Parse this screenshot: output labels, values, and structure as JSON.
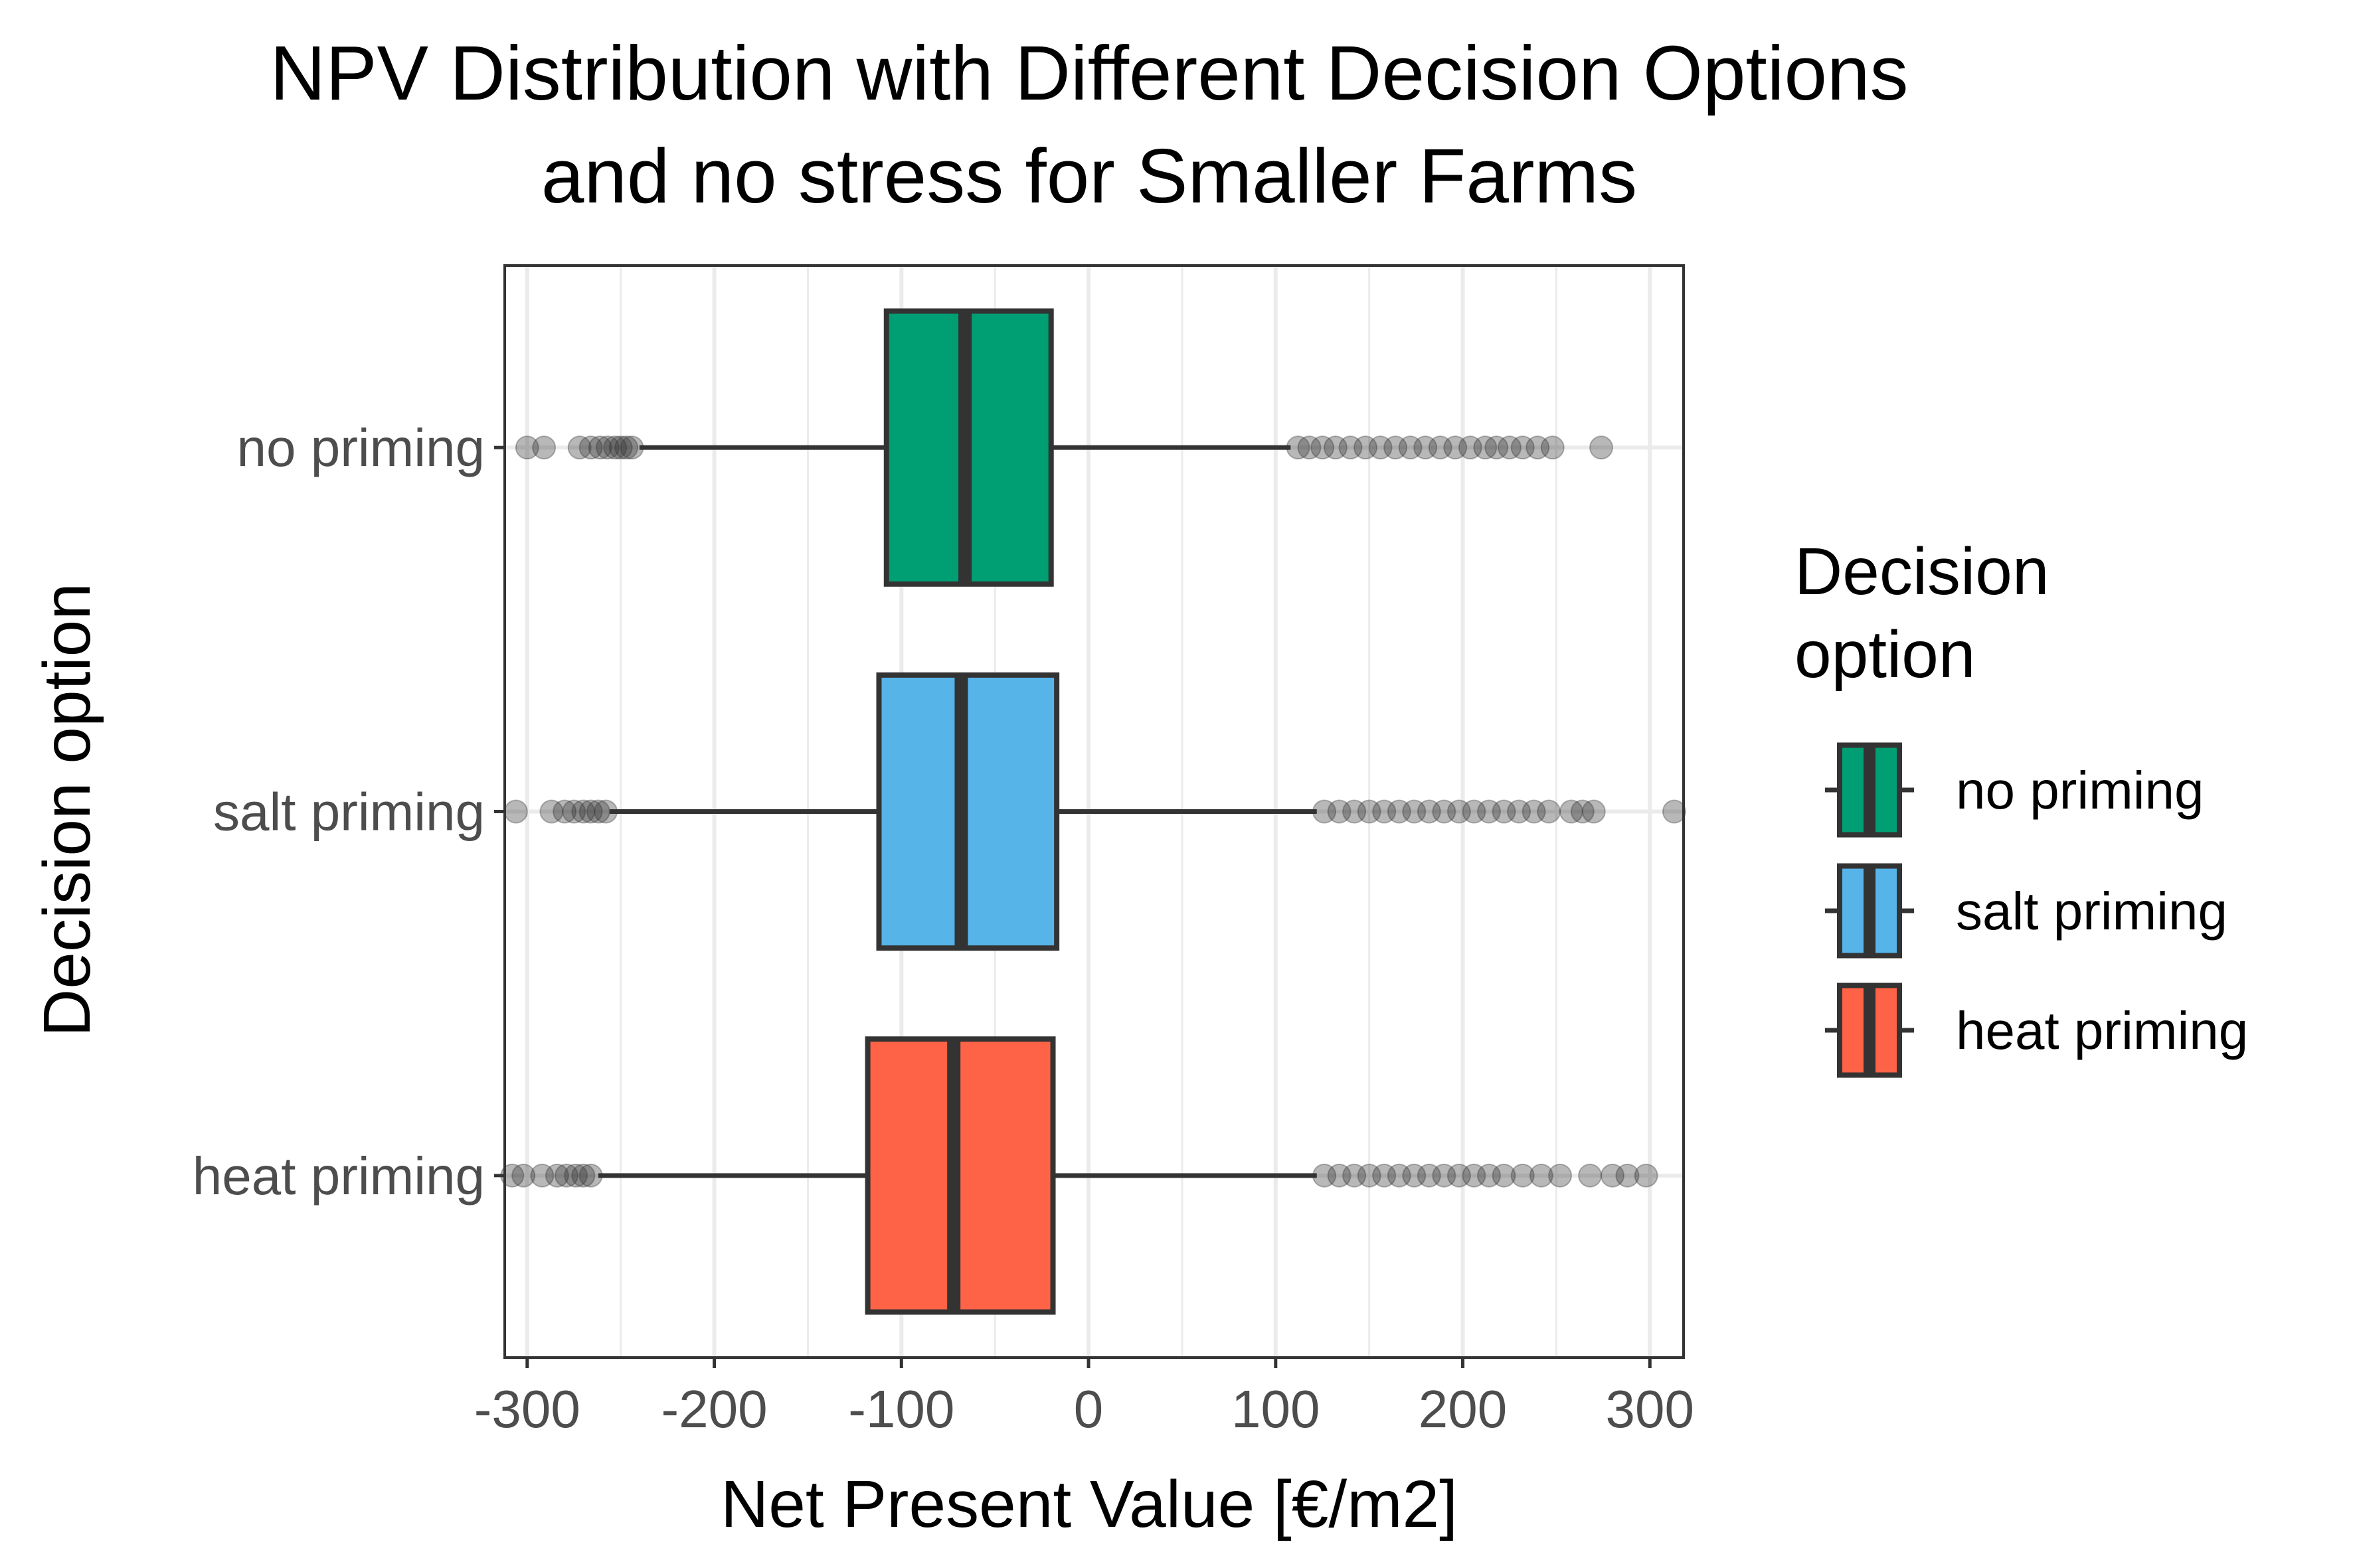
{
  "chart_data": {
    "type": "boxplot",
    "orientation": "horizontal",
    "title_lines": [
      "NPV Distribution with Different Decision Options",
      "and no stress for Smaller Farms"
    ],
    "xlabel": "Net Present Value [€/m2]",
    "ylabel": "Decision option",
    "xlim": [
      -312,
      318
    ],
    "x_ticks": [
      -300,
      -200,
      -100,
      0,
      100,
      200,
      300
    ],
    "x_tick_labels": [
      "-300",
      "-200",
      "-100",
      "0",
      "100",
      "200",
      "300"
    ],
    "x_minor_ticks": [
      -250,
      -150,
      -50,
      50,
      150,
      250
    ],
    "grid": true,
    "legend": {
      "title_lines": [
        "Decision",
        "option"
      ],
      "placement": "right",
      "order": [
        "no priming",
        "salt priming",
        "heat priming"
      ]
    },
    "colors": {
      "no priming": "#009E73",
      "salt priming": "#56B4E9",
      "heat priming": "#FF6347",
      "outline": "#333333",
      "grid": "#ebebeb",
      "outlier": "#333333"
    },
    "series": [
      {
        "name": "no priming",
        "q1": -108,
        "median": -66,
        "q3": -20,
        "whisker_low": -240,
        "whisker_high": 108,
        "outliers_low": [
          -300,
          -291,
          -272,
          -266,
          -261,
          -257,
          -253,
          -250,
          -247,
          -244
        ],
        "outliers_high": [
          112,
          118,
          125,
          132,
          140,
          148,
          156,
          164,
          172,
          180,
          188,
          196,
          204,
          212,
          218,
          225,
          232,
          240,
          248,
          274
        ]
      },
      {
        "name": "salt priming",
        "q1": -112,
        "median": -68,
        "q3": -17,
        "whisker_low": -256,
        "whisker_high": 122,
        "outliers_low": [
          -306,
          -287,
          -280,
          -275,
          -270,
          -266,
          -262,
          -258
        ],
        "outliers_high": [
          126,
          134,
          142,
          150,
          158,
          166,
          174,
          182,
          190,
          198,
          206,
          214,
          222,
          230,
          238,
          246,
          258,
          264,
          270,
          313
        ]
      },
      {
        "name": "heat priming",
        "q1": -118,
        "median": -72,
        "q3": -19,
        "whisker_low": -262,
        "whisker_high": 122,
        "outliers_low": [
          -308,
          -302,
          -292,
          -284,
          -279,
          -274,
          -270,
          -266
        ],
        "outliers_high": [
          126,
          134,
          142,
          150,
          158,
          166,
          174,
          182,
          190,
          198,
          206,
          214,
          222,
          232,
          242,
          252,
          268,
          280,
          288,
          298
        ]
      }
    ]
  }
}
